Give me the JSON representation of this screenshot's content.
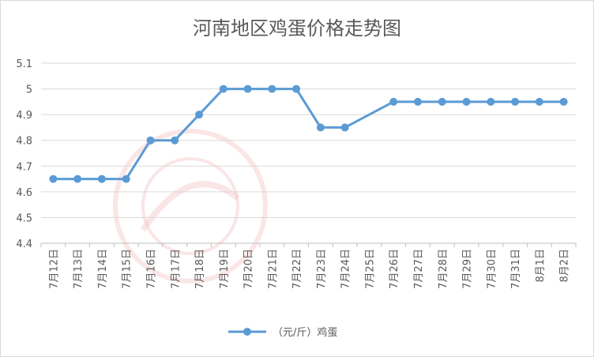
{
  "chart_data": {
    "type": "line",
    "title": "河南地区鸡蛋价格走势图",
    "categories": [
      "7月12日",
      "7月13日",
      "7月14日",
      "7月15日",
      "7月16日",
      "7月17日",
      "7月18日",
      "7月19日",
      "7月20日",
      "7月21日",
      "7月22日",
      "7月23日",
      "7月24日",
      "7月25日",
      "7月26日",
      "7月27日",
      "7月28日",
      "7月29日",
      "7月30日",
      "7月31日",
      "8月1日",
      "8月2日"
    ],
    "series": [
      {
        "name": "（元/斤）鸡蛋",
        "values": [
          4.65,
          4.65,
          4.65,
          4.65,
          4.8,
          4.8,
          4.9,
          5.0,
          5.0,
          5.0,
          5.0,
          4.85,
          4.85,
          null,
          4.95,
          4.95,
          4.95,
          4.95,
          4.95,
          4.95,
          4.95,
          4.95
        ]
      }
    ],
    "ylim": [
      4.4,
      5.1
    ],
    "yticks": [
      4.4,
      4.5,
      4.6,
      4.7,
      4.8,
      4.9,
      5.0,
      5.1
    ],
    "ytick_labels": [
      "4.4",
      "4.5",
      "4.6",
      "4.7",
      "4.8",
      "4.9",
      "5",
      "5.1"
    ],
    "grid": true,
    "legend_position": "bottom",
    "line_color": "#5b9bd5",
    "watermark": "鸡病专业网 www.jbzyw.com 为养殖业发展服务"
  }
}
